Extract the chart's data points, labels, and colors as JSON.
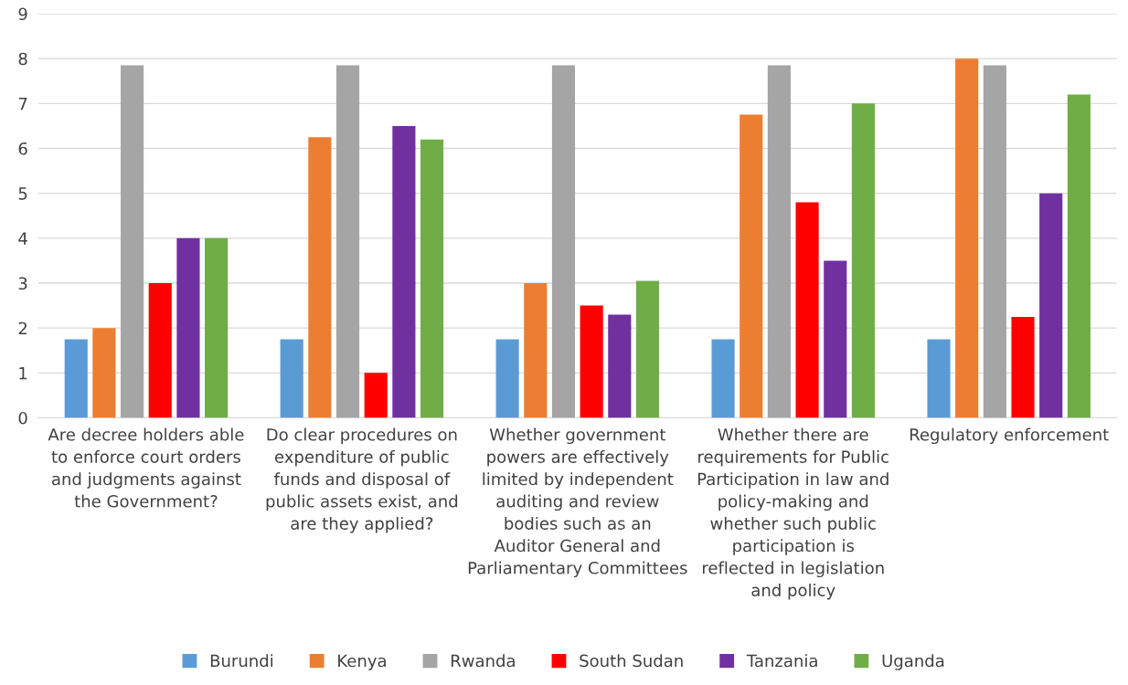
{
  "chart_data": {
    "type": "bar",
    "categories": [
      "Are decree holders able to enforce court orders and judgments against the Government?",
      "Do clear procedures on expenditure of public funds and disposal of public assets exist, and are they applied?",
      "Whether government powers are effectively limited by independent auditing and review bodies such as an Auditor General and Parliamentary Committees",
      "Whether there are requirements for Public Participation in law and policy-making and whether such public participation is reflected in legislation and policy",
      "Regulatory enforcement"
    ],
    "series": [
      {
        "name": "Burundi",
        "color": "#5b9bd5",
        "values": [
          1.75,
          1.75,
          1.75,
          1.75,
          1.75
        ]
      },
      {
        "name": "Kenya",
        "color": "#ed7d31",
        "values": [
          2,
          6.25,
          3,
          6.75,
          8
        ]
      },
      {
        "name": "Rwanda",
        "color": "#a5a5a5",
        "values": [
          7.85,
          7.85,
          7.85,
          7.85,
          7.85
        ]
      },
      {
        "name": "South Sudan",
        "color": "#ff0000",
        "values": [
          3,
          1,
          2.5,
          4.8,
          2.25
        ]
      },
      {
        "name": "Tanzania",
        "color": "#7030a0",
        "values": [
          4,
          6.5,
          2.3,
          3.5,
          5
        ]
      },
      {
        "name": "Uganda",
        "color": "#70ad47",
        "values": [
          4,
          6.2,
          3.05,
          7,
          7.2
        ]
      }
    ],
    "ylim": [
      0,
      9
    ],
    "yticks": [
      0,
      1,
      2,
      3,
      4,
      5,
      6,
      7,
      8,
      9
    ],
    "grid": "y",
    "legend": "bottom"
  }
}
